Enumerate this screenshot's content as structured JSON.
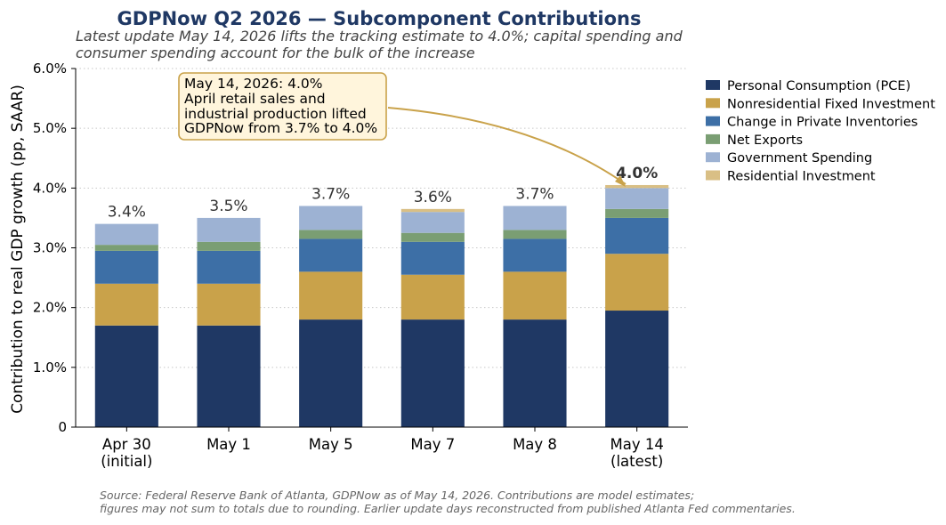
{
  "chart_data": {
    "type": "bar",
    "stacked": true,
    "title": "GDPNow Q2 2026 — Subcomponent Contributions",
    "subtitle": [
      "Latest update May 14, 2026 lifts the tracking estimate to 4.0%; capital spending and",
      "consumer spending account for the bulk of the increase"
    ],
    "ylabel": "Contribution to real GDP growth (pp, SAAR)",
    "ylim": [
      0,
      6
    ],
    "yticks": [
      {
        "value": 0,
        "label": "0"
      },
      {
        "value": 1,
        "label": "1.0%"
      },
      {
        "value": 2,
        "label": "2.0%"
      },
      {
        "value": 3,
        "label": "3.0%"
      },
      {
        "value": 4,
        "label": "4.0%"
      },
      {
        "value": 5,
        "label": "5.0%"
      },
      {
        "value": 6,
        "label": "6.0%"
      }
    ],
    "grid": "horizontal dotted",
    "legend_position": "right",
    "categories": [
      [
        "Apr 30",
        "(initial)"
      ],
      [
        "May 1"
      ],
      [
        "May 5"
      ],
      [
        "May 7"
      ],
      [
        "May 8"
      ],
      [
        "May 14",
        "(latest)"
      ]
    ],
    "series": [
      {
        "name": "Personal Consumption (PCE)",
        "color": "#1f3864",
        "values": [
          1.7,
          1.7,
          1.8,
          1.8,
          1.8,
          1.95
        ]
      },
      {
        "name": "Nonresidential Fixed Investment",
        "color": "#c9a24a",
        "values": [
          0.7,
          0.7,
          0.8,
          0.75,
          0.8,
          0.95
        ]
      },
      {
        "name": "Change in Private Inventories",
        "color": "#3d6fa6",
        "values": [
          0.55,
          0.55,
          0.55,
          0.55,
          0.55,
          0.6
        ]
      },
      {
        "name": "Net Exports",
        "color": "#7a9e73",
        "values": [
          0.1,
          0.15,
          0.15,
          0.15,
          0.15,
          0.15
        ]
      },
      {
        "name": "Government Spending",
        "color": "#9db2d3",
        "values": [
          0.35,
          0.4,
          0.4,
          0.35,
          0.4,
          0.35
        ]
      },
      {
        "name": "Residential Investment",
        "color": "#d9bf85",
        "values": [
          0.0,
          0.0,
          0.0,
          0.05,
          0.0,
          0.05
        ]
      }
    ],
    "totals": [
      "3.4%",
      "3.5%",
      "3.7%",
      "3.6%",
      "3.7%",
      "4.0%"
    ],
    "highlight_total_index": 5,
    "highlight_color": "#1f3864",
    "annotation": {
      "lines": [
        "May 14, 2026: 4.0%",
        "April retail sales and",
        "industrial production lifted",
        "GDPNow from 3.7% to 4.0%"
      ],
      "box_fill": "#fff5dc",
      "border_color": "#c9a24a"
    },
    "source": [
      "Source: Federal Reserve Bank of Atlanta, GDPNow as of May 14, 2026. Contributions are model estimates;",
      "figures may not sum to totals due to rounding. Earlier update days reconstructed from published Atlanta Fed commentaries."
    ],
    "colors": {
      "title": "#1f3864",
      "grid": "#c8c8c8",
      "axis": "#444444"
    }
  }
}
